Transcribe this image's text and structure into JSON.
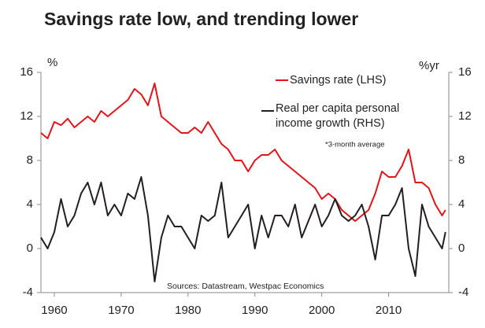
{
  "chart_data": {
    "type": "line",
    "title": "Savings rate low, and trending lower",
    "y_label": "%",
    "y2_label": "%yr",
    "note": "*3-month average",
    "source": "Sources: Datastream, Westpac Economics",
    "x": [
      1958,
      1959,
      1960,
      1961,
      1962,
      1963,
      1964,
      1965,
      1966,
      1967,
      1968,
      1969,
      1970,
      1971,
      1972,
      1973,
      1974,
      1975,
      1976,
      1977,
      1978,
      1979,
      1980,
      1981,
      1982,
      1983,
      1984,
      1985,
      1986,
      1987,
      1988,
      1989,
      1990,
      1991,
      1992,
      1993,
      1994,
      1995,
      1996,
      1997,
      1998,
      1999,
      2000,
      2001,
      2002,
      2003,
      2004,
      2005,
      2006,
      2007,
      2008,
      2009,
      2010,
      2011,
      2012,
      2013,
      2014,
      2015,
      2016,
      2017,
      2018,
      2018.5
    ],
    "series": [
      {
        "name": "Savings rate (LHS)",
        "color": "#e2141a",
        "axis": "y",
        "values": [
          10.5,
          10,
          11.5,
          11.2,
          11.8,
          11,
          11.5,
          12,
          11.5,
          12.5,
          12,
          12.5,
          13,
          13.5,
          14.5,
          14,
          13,
          15,
          12,
          11.5,
          11,
          10.5,
          10.5,
          11,
          10.5,
          11.5,
          10.5,
          9.5,
          9,
          8,
          8,
          7,
          8,
          8.5,
          8.5,
          9,
          8,
          7.5,
          7,
          6.5,
          6,
          5.5,
          4.5,
          5,
          4.5,
          3.5,
          3,
          2.5,
          3,
          3.5,
          5,
          7,
          6.5,
          6.5,
          7.5,
          9,
          6,
          6,
          5.5,
          4,
          3,
          3.5
        ]
      },
      {
        "name": "Real per capita personal income growth (RHS)",
        "color": "#231f20",
        "axis": "y2",
        "values": [
          1,
          0,
          1.5,
          4.5,
          2,
          3,
          5,
          6,
          4,
          6,
          3,
          4,
          3,
          5,
          4.5,
          6.5,
          3,
          -3,
          1,
          3,
          2,
          2,
          1,
          0,
          3,
          2.5,
          3,
          6,
          1,
          2,
          3,
          4,
          0,
          3,
          1,
          3,
          3,
          2,
          4,
          1,
          2.5,
          4,
          2,
          3,
          4.5,
          3,
          2.5,
          3,
          4,
          2,
          -1,
          3,
          3,
          4,
          5.5,
          0,
          -2.5,
          4,
          2,
          1,
          0,
          1.5
        ]
      }
    ],
    "xlim": [
      1958,
      2019
    ],
    "xticks": [
      1960,
      1970,
      1980,
      1990,
      2000,
      2010
    ],
    "ylim": [
      -4,
      16
    ],
    "yticks": [
      -4,
      0,
      4,
      8,
      12,
      16
    ],
    "y2lim": [
      -4,
      16
    ],
    "y2ticks": [
      -4,
      0,
      4,
      8,
      12,
      16
    ]
  }
}
